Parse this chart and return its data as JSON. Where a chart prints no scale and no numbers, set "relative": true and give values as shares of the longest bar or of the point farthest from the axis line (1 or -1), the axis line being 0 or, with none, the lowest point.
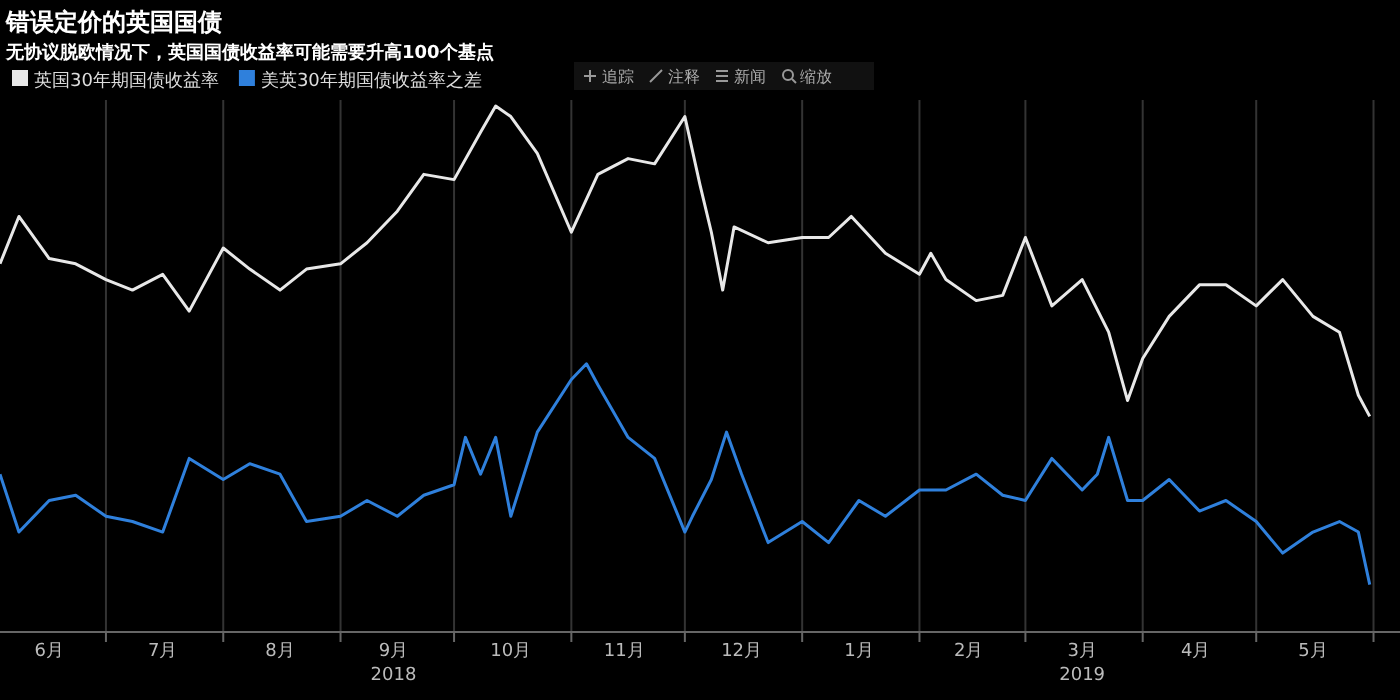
{
  "chart_data": {
    "type": "line",
    "title": "错误定价的英国国债",
    "subtitle": "无协议脱欧情况下，英国国债收益率可能需要升高100个基点",
    "relative": true,
    "grid": "x",
    "legend": "top left",
    "marker": "none",
    "line_style": "solid",
    "xlim": [
      "2018-06-03",
      "2019-06-08"
    ],
    "xticks": [
      {
        "value": "2018-06-16",
        "label": "6月"
      },
      {
        "value": "2018-07-01",
        "label": null
      },
      {
        "value": "2018-07-16",
        "label": "7月"
      },
      {
        "value": "2018-08-01",
        "label": null
      },
      {
        "value": "2018-08-16",
        "label": "8月"
      },
      {
        "value": "2018-09-01",
        "label": null
      },
      {
        "value": "2018-09-15",
        "label": "9月\n2018"
      },
      {
        "value": "2018-10-01",
        "label": null
      },
      {
        "value": "2018-10-16",
        "label": "10月"
      },
      {
        "value": "2018-11-01",
        "label": null
      },
      {
        "value": "2018-11-15",
        "label": "11月"
      },
      {
        "value": "2018-12-01",
        "label": null
      },
      {
        "value": "2018-12-16",
        "label": "12月"
      },
      {
        "value": "2019-01-01",
        "label": null
      },
      {
        "value": "2019-01-16",
        "label": "1月"
      },
      {
        "value": "2019-02-01",
        "label": null
      },
      {
        "value": "2019-02-14",
        "label": "2月"
      },
      {
        "value": "2019-03-01",
        "label": null
      },
      {
        "value": "2019-03-16",
        "label": "3月\n2019"
      },
      {
        "value": "2019-04-01",
        "label": null
      },
      {
        "value": "2019-04-15",
        "label": "4月"
      },
      {
        "value": "2019-05-01",
        "label": null
      },
      {
        "value": "2019-05-16",
        "label": "5月"
      },
      {
        "value": "2019-06-01",
        "label": null
      }
    ],
    "annotations": [
      "追踪",
      "注释",
      "新闻",
      "缩放"
    ],
    "series": [
      {
        "name": "英国30年期国债收益率",
        "color": "#e8e8e8",
        "x": [
          "2018-06-03",
          "2018-06-08",
          "2018-06-16",
          "2018-06-23",
          "2018-07-01",
          "2018-07-08",
          "2018-07-16",
          "2018-07-23",
          "2018-08-01",
          "2018-08-08",
          "2018-08-16",
          "2018-08-23",
          "2018-09-01",
          "2018-09-08",
          "2018-09-16",
          "2018-09-23",
          "2018-10-01",
          "2018-10-08",
          "2018-10-12",
          "2018-10-16",
          "2018-10-23",
          "2018-11-01",
          "2018-11-08",
          "2018-11-16",
          "2018-11-23",
          "2018-12-01",
          "2018-12-05",
          "2018-12-08",
          "2018-12-11",
          "2018-12-14",
          "2018-12-23",
          "2019-01-01",
          "2019-01-08",
          "2019-01-14",
          "2019-01-23",
          "2019-02-01",
          "2019-02-04",
          "2019-02-08",
          "2019-02-16",
          "2019-02-23",
          "2019-03-01",
          "2019-03-08",
          "2019-03-16",
          "2019-03-23",
          "2019-03-28",
          "2019-04-01",
          "2019-04-08",
          "2019-04-16",
          "2019-04-23",
          "2019-05-01",
          "2019-05-08",
          "2019-05-16",
          "2019-05-23",
          "2019-05-28",
          "2019-05-31"
        ],
        "values": [
          0.7,
          0.79,
          0.71,
          0.7,
          0.67,
          0.65,
          0.68,
          0.61,
          0.73,
          0.69,
          0.65,
          0.69,
          0.7,
          0.74,
          0.8,
          0.87,
          0.86,
          0.95,
          1,
          0.98,
          0.91,
          0.76,
          0.87,
          0.9,
          0.89,
          0.98,
          0.85,
          0.76,
          0.65,
          0.77,
          0.74,
          0.75,
          0.75,
          0.79,
          0.72,
          0.68,
          0.72,
          0.67,
          0.63,
          0.64,
          0.75,
          0.62,
          0.67,
          0.57,
          0.44,
          0.52,
          0.6,
          0.66,
          0.66,
          0.62,
          0.67,
          0.6,
          0.57,
          0.45,
          0.41
        ]
      },
      {
        "name": "美英30年期国债收益率之差",
        "color": "#2f80dc",
        "x": [
          "2018-06-03",
          "2018-06-08",
          "2018-06-16",
          "2018-06-23",
          "2018-07-01",
          "2018-07-08",
          "2018-07-16",
          "2018-07-23",
          "2018-08-01",
          "2018-08-08",
          "2018-08-16",
          "2018-08-23",
          "2018-09-01",
          "2018-09-08",
          "2018-09-16",
          "2018-09-23",
          "2018-10-01",
          "2018-10-04",
          "2018-10-08",
          "2018-10-12",
          "2018-10-16",
          "2018-10-23",
          "2018-11-01",
          "2018-11-05",
          "2018-11-08",
          "2018-11-16",
          "2018-11-23",
          "2018-12-01",
          "2018-12-03",
          "2018-12-08",
          "2018-12-12",
          "2018-12-16",
          "2018-12-23",
          "2019-01-01",
          "2019-01-08",
          "2019-01-16",
          "2019-01-23",
          "2019-02-01",
          "2019-02-08",
          "2019-02-16",
          "2019-02-23",
          "2019-03-01",
          "2019-03-08",
          "2019-03-16",
          "2019-03-20",
          "2019-03-23",
          "2019-03-28",
          "2019-04-01",
          "2019-04-08",
          "2019-04-16",
          "2019-04-23",
          "2019-05-01",
          "2019-05-08",
          "2019-05-16",
          "2019-05-23",
          "2019-05-28",
          "2019-05-31"
        ],
        "values": [
          0.3,
          0.19,
          0.25,
          0.26,
          0.22,
          0.21,
          0.19,
          0.33,
          0.29,
          0.32,
          0.3,
          0.21,
          0.22,
          0.25,
          0.22,
          0.26,
          0.28,
          0.37,
          0.3,
          0.37,
          0.22,
          0.38,
          0.48,
          0.51,
          0.47,
          0.37,
          0.33,
          0.19,
          0.22,
          0.29,
          0.38,
          0.3,
          0.17,
          0.21,
          0.17,
          0.25,
          0.22,
          0.27,
          0.27,
          0.3,
          0.26,
          0.25,
          0.33,
          0.27,
          0.3,
          0.37,
          0.25,
          0.25,
          0.29,
          0.23,
          0.25,
          0.21,
          0.15,
          0.19,
          0.21,
          0.19,
          0.09
        ]
      }
    ]
  }
}
